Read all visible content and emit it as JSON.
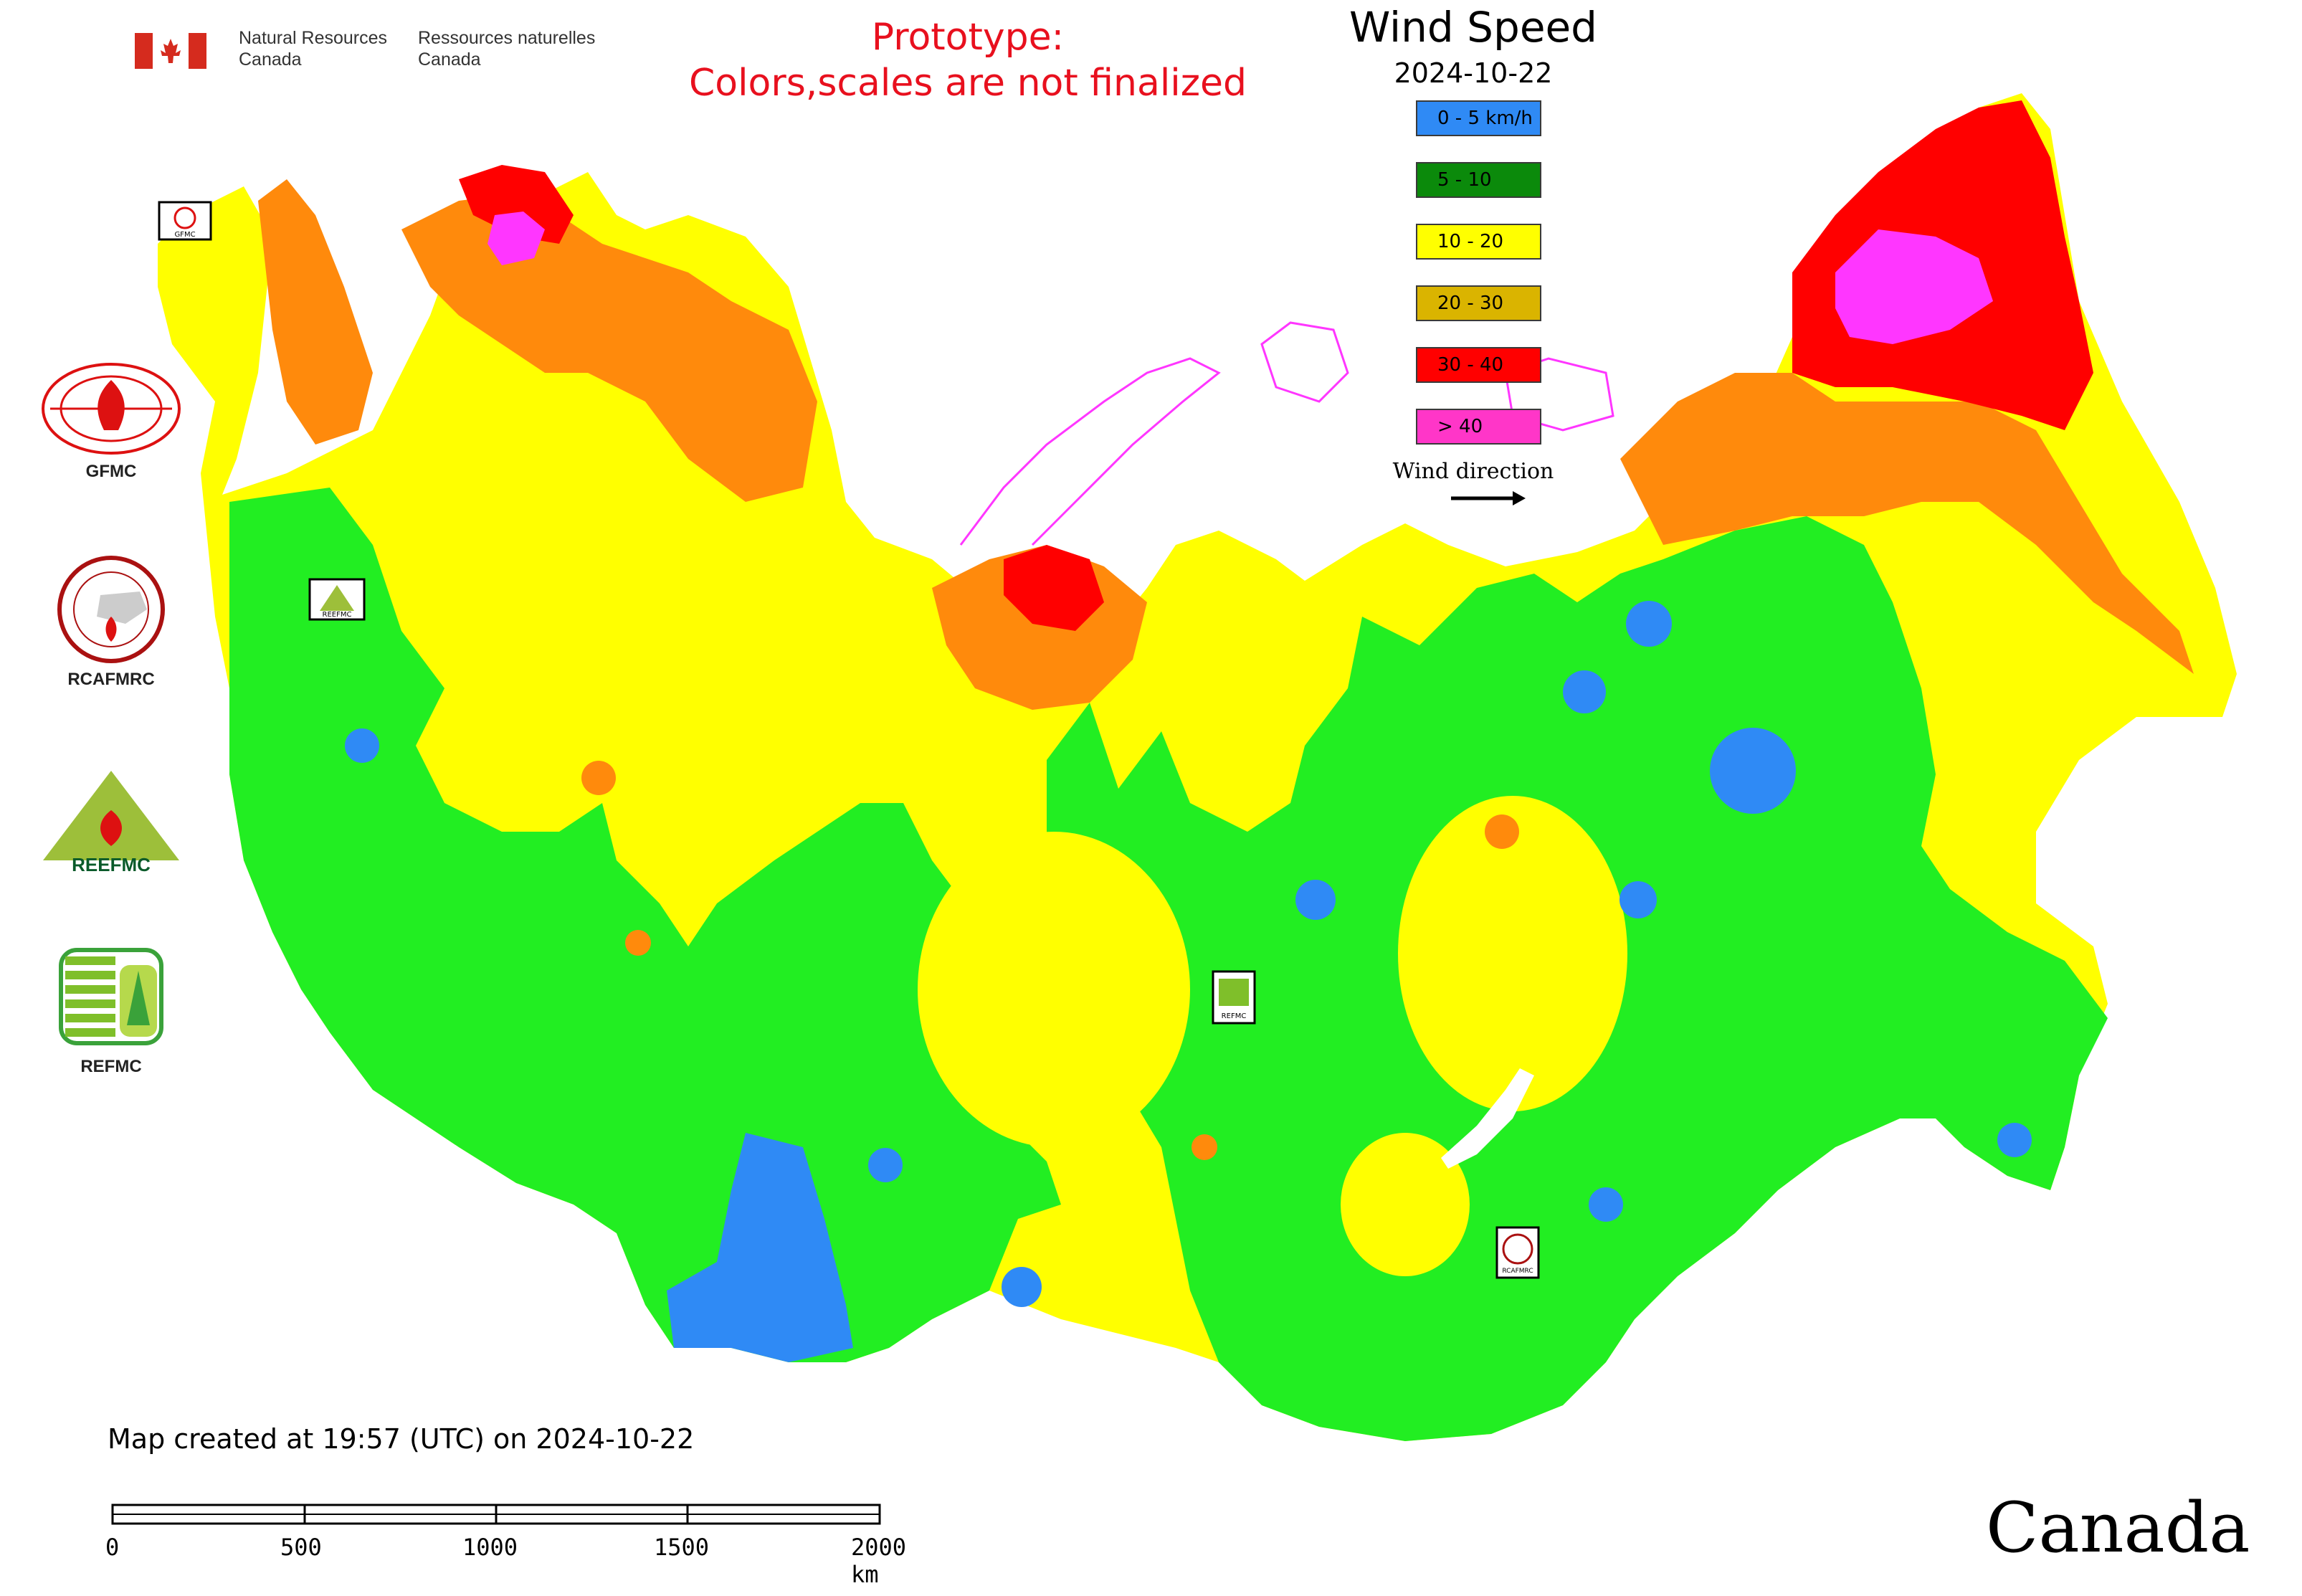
{
  "header": {
    "english_name_line1": "Natural Resources",
    "english_name_line2": "Canada",
    "french_name_line1": "Ressources naturelles",
    "french_name_line2": "Canada"
  },
  "notice": {
    "line1": "Prototype:",
    "line2": "Colors,scales are not finalized",
    "color": "#e8101e"
  },
  "legend": {
    "title": "Wind Speed",
    "date": "2024-10-22",
    "classes": [
      {
        "label": "0 - 5 km/h",
        "color": "#2f8af5"
      },
      {
        "label": "5 - 10",
        "color": "#0b8a0b"
      },
      {
        "label": "10 - 20",
        "color": "#ffff00"
      },
      {
        "label": "20 - 30",
        "color": "#dab400"
      },
      {
        "label": "30 - 40",
        "color": "#ff0000"
      },
      {
        "label": "> 40",
        "color": "#ff36c8"
      }
    ],
    "wind_direction_label": "Wind direction"
  },
  "map_colors": {
    "calm": "#2f8af5",
    "light": "#22ee22",
    "moderate": "#ffff00",
    "fresh": "#ff8a0c",
    "strong": "#ff0000",
    "gale": "#ff36ff",
    "water": "#ffffff"
  },
  "logos": [
    {
      "caption": "GFMC",
      "icon": "gfmc-logo"
    },
    {
      "caption": "RCAFMRC",
      "icon": "rcafmrc-logo"
    },
    {
      "caption": "",
      "icon": "reefmc-logo",
      "wordmark": "REEFMC"
    },
    {
      "caption": "REFMC",
      "icon": "refmc-logo"
    }
  ],
  "map_markers": [
    "GFMC",
    "REEFMC",
    "REFMC",
    "RCAFMRC"
  ],
  "footer": {
    "created_text": "Map created at 19:57 (UTC) on 2024-10-22",
    "scale_labels": [
      "0",
      "500",
      "1000",
      "1500",
      "2000 km"
    ],
    "canada_wordmark": "Canada"
  }
}
